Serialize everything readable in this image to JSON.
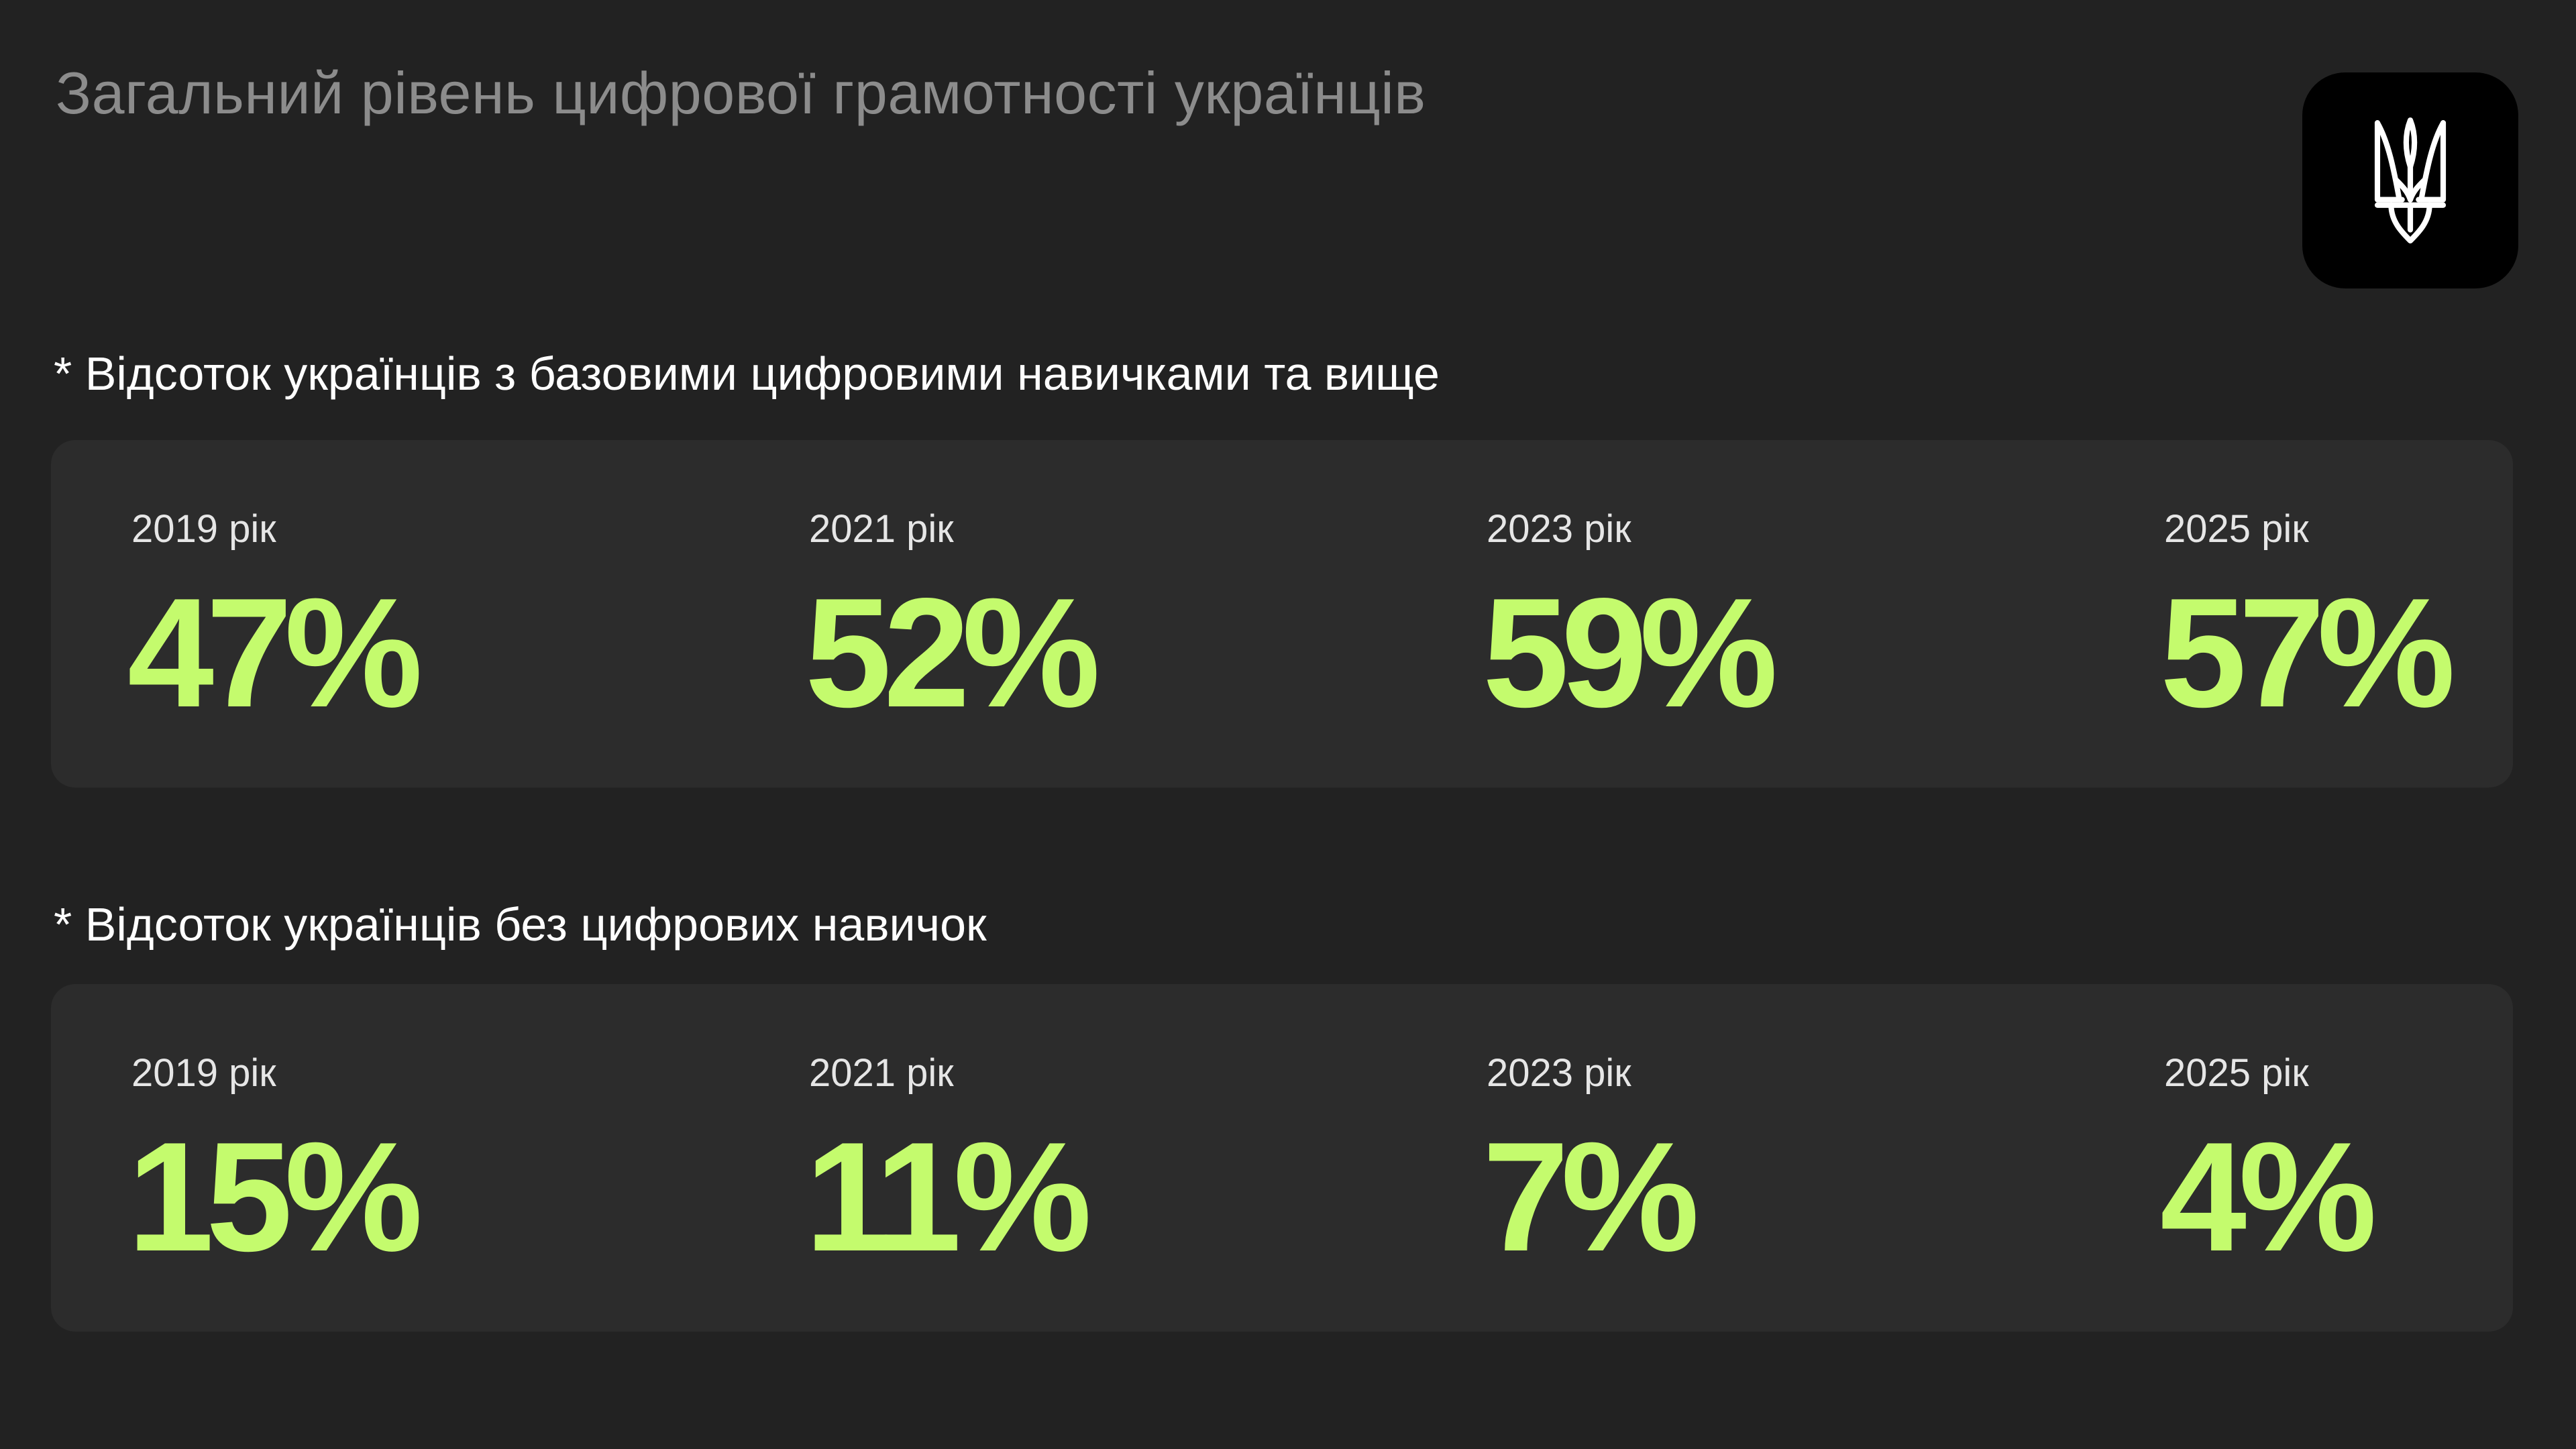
{
  "page": {
    "title": "Загальний рівень цифрової грамотності українців"
  },
  "logo": {
    "icon": "trident-icon",
    "tile_color": "#000000",
    "icon_color": "#ffffff"
  },
  "theme": {
    "background": "#222222",
    "card_background": "#2c2c2c",
    "accent": "#c4fb6d",
    "title_color": "#8c8c8c"
  },
  "sections": [
    {
      "title": "* Відсоток українців з базовими цифровими навичками та вище",
      "stats": [
        {
          "year_label": "2019 рік",
          "value": "47%"
        },
        {
          "year_label": "2021 рік",
          "value": "52%"
        },
        {
          "year_label": "2023 рік",
          "value": "59%"
        },
        {
          "year_label": "2025 рік",
          "value": "57%"
        }
      ]
    },
    {
      "title": "* Відсоток українців без цифрових навичок",
      "stats": [
        {
          "year_label": "2019 рік",
          "value": "15%"
        },
        {
          "year_label": "2021 рік",
          "value": "11%"
        },
        {
          "year_label": "2023 рік",
          "value": "7%"
        },
        {
          "year_label": "2025 рік",
          "value": "4%"
        }
      ]
    }
  ]
}
